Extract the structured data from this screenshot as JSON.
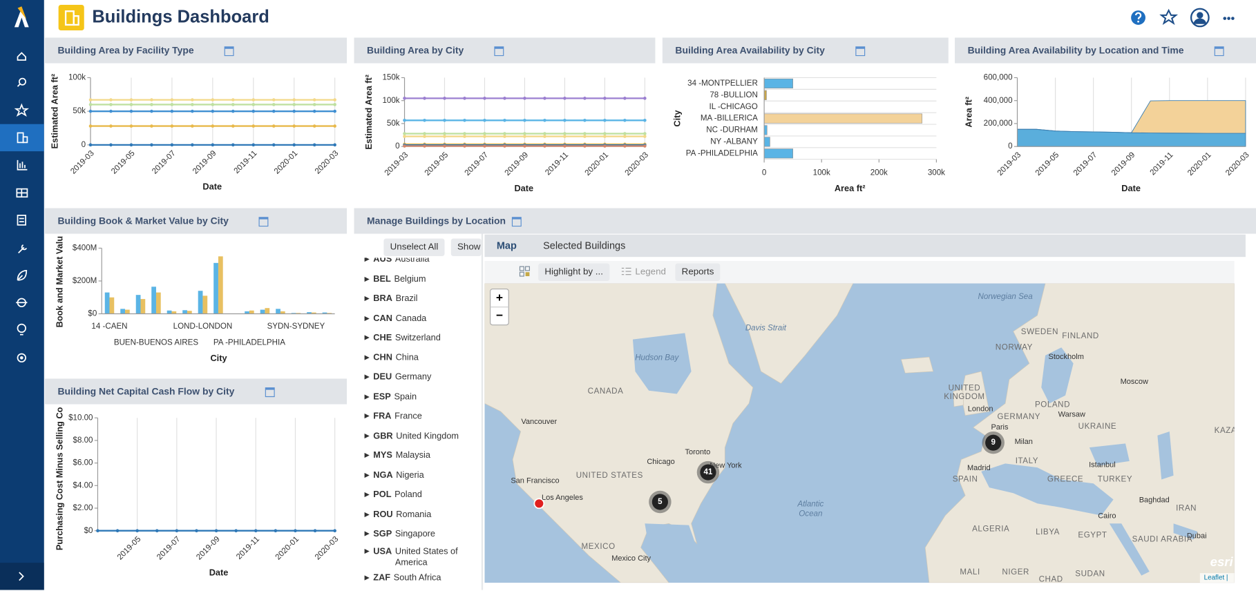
{
  "header": {
    "title": "Buildings Dashboard"
  },
  "chart_data": [
    {
      "type": "line",
      "title": "Building Area by Facility Type",
      "y_label": "Estimated Area ft²",
      "x_label": "Date",
      "categories": [
        "2019-03",
        null,
        "2019-05",
        null,
        "2019-07",
        null,
        "2019-09",
        null,
        "2019-11",
        null,
        "2020-01",
        null,
        "2020-03"
      ],
      "ylim": [
        0,
        100000
      ],
      "yticks": [
        0,
        {
          "value": 50000,
          "label": "50k"
        },
        {
          "value": 100000,
          "label": "100k"
        }
      ],
      "grid": "x",
      "series": [
        {
          "color": "#f3d889",
          "values": [
            67000,
            67000,
            67000,
            67000,
            67000,
            67000,
            67000,
            67000,
            67000,
            67000,
            67000,
            67000,
            67000
          ]
        },
        {
          "color": "#bfe0a0",
          "values": [
            60000,
            60000,
            60000,
            60000,
            60000,
            60000,
            60000,
            60000,
            60000,
            60000,
            60000,
            60000,
            60000
          ]
        },
        {
          "color": "#3f8fd2",
          "values": [
            50000,
            50000,
            50000,
            50000,
            50000,
            50000,
            50000,
            50000,
            50000,
            50000,
            50000,
            50000,
            50000
          ]
        },
        {
          "color": "#e8b94a",
          "values": [
            28000,
            28000,
            28000,
            28000,
            28000,
            28000,
            28000,
            28000,
            28000,
            28000,
            28000,
            28000,
            28000
          ]
        },
        {
          "color": "#2e78b7",
          "values": [
            0,
            0,
            0,
            0,
            0,
            0,
            0,
            0,
            0,
            0,
            0,
            0,
            0
          ]
        }
      ]
    },
    {
      "type": "line",
      "title": "Building Area by City",
      "y_label": "Estimated Area ft²",
      "x_label": "Date",
      "categories": [
        "2019-03",
        null,
        "2019-05",
        null,
        "2019-07",
        null,
        "2019-09",
        null,
        "2019-11",
        null,
        "2020-01",
        null,
        "2020-03"
      ],
      "ylim": [
        0,
        150000
      ],
      "yticks": [
        0,
        {
          "value": 50000,
          "label": "50k"
        },
        {
          "value": 100000,
          "label": "100k"
        },
        {
          "value": 150000,
          "label": "150k"
        }
      ],
      "grid": "x",
      "series": [
        {
          "color": "#9b7fd0",
          "values": [
            105000,
            105000,
            105000,
            105000,
            105000,
            105000,
            105000,
            105000,
            105000,
            105000,
            105000,
            105000,
            105000
          ]
        },
        {
          "color": "#5ab4e5",
          "values": [
            57000,
            57000,
            57000,
            57000,
            57000,
            57000,
            57000,
            57000,
            57000,
            57000,
            57000,
            57000,
            57000
          ]
        },
        {
          "color": "#bfe0a0",
          "values": [
            28000,
            28000,
            28000,
            28000,
            28000,
            28000,
            28000,
            28000,
            28000,
            28000,
            28000,
            28000,
            28000
          ]
        },
        {
          "color": "#f3d889",
          "values": [
            22000,
            22000,
            22000,
            22000,
            22000,
            22000,
            22000,
            22000,
            22000,
            22000,
            22000,
            22000,
            22000
          ]
        },
        {
          "color": "#e8b94a",
          "values": [
            5000,
            5000,
            5000,
            5000,
            5000,
            5000,
            5000,
            5000,
            5000,
            5000,
            5000,
            5000,
            5000
          ]
        },
        {
          "color": "#2e78b7",
          "values": [
            3000,
            3000,
            3000,
            3000,
            3000,
            3000,
            3000,
            3000,
            3000,
            3000,
            3000,
            3000,
            3000
          ]
        },
        {
          "color": "#d4876a",
          "values": [
            1000,
            1000,
            1000,
            1000,
            1000,
            1000,
            1000,
            1000,
            1000,
            1000,
            1000,
            1000,
            1000
          ]
        }
      ]
    },
    {
      "type": "hbar",
      "title": "Building Area Availability by City",
      "y_label": "City",
      "x_label": "Area ft²",
      "categories": [
        "34 -MONTPELLIER",
        "78 -BULLION",
        "IL -CHICAGO",
        "MA -BILLERICA",
        "NC -DURHAM",
        "NY -ALBANY",
        "PA -PHILADELPHIA"
      ],
      "values": [
        50000,
        4000,
        0,
        275000,
        5000,
        10000,
        50000
      ],
      "colors": [
        "#5ab4e5",
        "#c9a64a",
        "#5ab4e5",
        "#f3d299",
        "#5ab4e5",
        "#5ab4e5",
        "#5ab4e5"
      ],
      "xlim": [
        0,
        300000
      ],
      "xticks": [
        0,
        {
          "value": 100000,
          "label": "100k"
        },
        {
          "value": 200000,
          "label": "200k"
        },
        {
          "value": 300000,
          "label": "300k"
        }
      ]
    },
    {
      "type": "area",
      "title": "Building Area Availability by Location and Time",
      "y_label": "Area ft²",
      "x_label": "Date",
      "stacked": true,
      "categories": [
        "2019-03",
        null,
        "2019-05",
        null,
        "2019-07",
        null,
        "2019-09",
        null,
        "2019-11",
        null,
        "2020-01",
        null,
        "2020-03"
      ],
      "ylim": [
        0,
        600000
      ],
      "yticks": [
        0,
        {
          "value": 200000,
          "label": "200,000"
        },
        {
          "value": 400000,
          "label": "400,000"
        },
        {
          "value": 600000,
          "label": "600,000"
        }
      ],
      "grid": "x",
      "series": [
        {
          "color": "#5aaedc",
          "values": [
            150000,
            150000,
            135000,
            130000,
            128000,
            125000,
            120000,
            118000,
            117000,
            116000,
            115000,
            115000,
            115000
          ]
        },
        {
          "color": "#f3d299",
          "values": [
            0,
            0,
            0,
            0,
            0,
            0,
            0,
            280000,
            283000,
            284000,
            285000,
            285000,
            285000
          ]
        }
      ]
    },
    {
      "type": "grouped_bar",
      "title": "Building Book & Market Value by City",
      "y_label": "Book and Market Valu",
      "x_label": "City",
      "categories": [
        "14 -CAEN",
        null,
        null,
        "BUEN-BUENOS AIRES",
        null,
        null,
        "LOND-LONDON",
        null,
        null,
        "PA -PHILADELPHIA",
        null,
        null,
        "SYDN-SYDNEY",
        null,
        null
      ],
      "ylim": [
        0,
        400000000
      ],
      "yticks": [
        {
          "value": 0,
          "label": "$0"
        },
        {
          "value": 200000000,
          "label": "$200M"
        },
        {
          "value": 400000000,
          "label": "$400M"
        }
      ],
      "series": [
        {
          "color": "#5ab4e5",
          "values": [
            130000000,
            30000000,
            115000000,
            165000000,
            20000000,
            22000000,
            140000000,
            310000000,
            0,
            15000000,
            25000000,
            30000000,
            5000000,
            10000000,
            8000000
          ]
        },
        {
          "color": "#e8c061",
          "values": [
            100000000,
            25000000,
            90000000,
            130000000,
            15000000,
            18000000,
            110000000,
            350000000,
            0,
            20000000,
            35000000,
            15000000,
            5000000,
            8000000,
            5000000
          ]
        }
      ]
    },
    {
      "type": "line",
      "title": "Building Net Capital Cash Flow by City",
      "y_label": "Purchasing Cost Minus Selling Co",
      "x_label": "Date",
      "categories": [
        null,
        null,
        "2019-05",
        null,
        "2019-07",
        null,
        "2019-09",
        null,
        "2019-11",
        null,
        "2020-01",
        null,
        "2020-03"
      ],
      "ylim": [
        0,
        10
      ],
      "yticks": [
        {
          "value": 0,
          "label": "$0"
        },
        {
          "value": 2,
          "label": "$2.00"
        },
        {
          "value": 4,
          "label": "$4.00"
        },
        {
          "value": 6,
          "label": "$6.00"
        },
        {
          "value": 8,
          "label": "$8.00"
        },
        {
          "value": 10,
          "label": "$10.00"
        }
      ],
      "grid": "x",
      "series": [
        {
          "color": "#2e78b7",
          "values": [
            0,
            0,
            0,
            0,
            0,
            0,
            0,
            0,
            0,
            0,
            0,
            0,
            0
          ]
        }
      ]
    }
  ],
  "manage": {
    "title": "Manage Buildings by Location",
    "buttons": [
      "Unselect All",
      "Show"
    ],
    "tree": [
      {
        "code": "AUS",
        "name": "Australia"
      },
      {
        "code": "BEL",
        "name": "Belgium"
      },
      {
        "code": "BRA",
        "name": "Brazil"
      },
      {
        "code": "CAN",
        "name": "Canada"
      },
      {
        "code": "CHE",
        "name": "Switzerland"
      },
      {
        "code": "CHN",
        "name": "China"
      },
      {
        "code": "DEU",
        "name": "Germany"
      },
      {
        "code": "ESP",
        "name": "Spain"
      },
      {
        "code": "FRA",
        "name": "France"
      },
      {
        "code": "GBR",
        "name": "United Kingdom"
      },
      {
        "code": "MYS",
        "name": "Malaysia"
      },
      {
        "code": "NGA",
        "name": "Nigeria"
      },
      {
        "code": "POL",
        "name": "Poland"
      },
      {
        "code": "ROU",
        "name": "Romania"
      },
      {
        "code": "SGP",
        "name": "Singapore"
      },
      {
        "code": "USA",
        "name": "United States of America"
      },
      {
        "code": "ZAF",
        "name": "South Africa"
      }
    ],
    "tabs": [
      "Map",
      "Selected Buildings"
    ],
    "toolbar": [
      "Highlight by ...",
      "Legend",
      "Reports"
    ],
    "map": {
      "zoom": [
        "+",
        "−"
      ],
      "labels": [
        "Norwegian Sea",
        "Davis Strait",
        "Hudson Bay",
        "SWEDEN",
        "FINLAND",
        "NORWAY",
        "Stockholm",
        "CANADA",
        "Moscow",
        "UNITED",
        "KINGDOM",
        "London",
        "POLAND",
        "GERMANY",
        "Warsaw",
        "Paris",
        "UKRAINE",
        "KAZA",
        "Vancouver",
        "Milan",
        "Toronto",
        "Chicago",
        "New York",
        "ITALY",
        "Istanbul",
        "Madrid",
        "UNITED STATES",
        "SPAIN",
        "GREECE",
        "TURKEY",
        "San Francisco",
        "Los Angeles",
        "Baghdad",
        "Atlantic",
        "Ocean",
        "IRAN",
        "Cairo",
        "ALGERIA",
        "LIBYA",
        "EGYPT",
        "Dubai",
        "SAUDI ARABIA",
        "MEXICO",
        "Mexico City",
        "MALI",
        "NIGER",
        "CHAD",
        "SUDAN"
      ],
      "clusters": [
        9,
        41,
        5
      ],
      "logo": "esri",
      "attribution": "Leaflet |"
    }
  }
}
